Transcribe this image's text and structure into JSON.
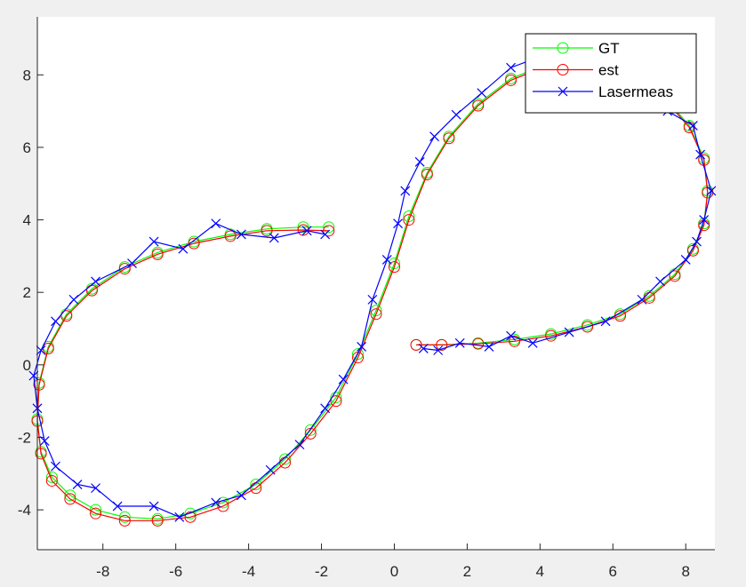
{
  "figure": {
    "background": "#f0f0f0",
    "axes_background": "#ffffff",
    "axis_color": "#262626"
  },
  "chart_data": {
    "type": "line",
    "title": "",
    "xlabel": "",
    "ylabel": "",
    "xlim": [
      -9.8,
      8.8
    ],
    "ylim": [
      -5.1,
      9.6
    ],
    "xticks": [
      -8,
      -6,
      -4,
      -2,
      0,
      2,
      4,
      6,
      8
    ],
    "yticks": [
      -4,
      -2,
      0,
      2,
      4,
      6,
      8
    ],
    "grid": false,
    "legend_position": "top-right",
    "series": [
      {
        "name": "GT",
        "color": "#00ff00",
        "marker": "circle",
        "x": [
          -1.8,
          -2.5,
          -3.5,
          -4.5,
          -5.5,
          -6.5,
          -7.4,
          -8.3,
          -9.0,
          -9.5,
          -9.75,
          -9.8,
          -9.7,
          -9.4,
          -8.9,
          -8.2,
          -7.4,
          -6.5,
          -5.6,
          -4.7,
          -3.8,
          -3.0,
          -2.3,
          -1.6,
          -1.0,
          -0.5,
          0.0,
          0.4,
          0.9,
          1.5,
          2.3,
          3.2,
          4.2,
          5.3,
          6.4,
          7.4,
          8.1,
          8.5,
          8.6,
          8.5,
          8.2,
          7.7,
          7.0,
          6.2,
          5.3,
          4.3,
          3.3,
          2.3,
          1.3,
          0.6
        ],
        "y": [
          3.8,
          3.8,
          3.75,
          3.6,
          3.4,
          3.1,
          2.7,
          2.1,
          1.4,
          0.5,
          -0.5,
          -1.5,
          -2.4,
          -3.1,
          -3.6,
          -4.0,
          -4.2,
          -4.25,
          -4.1,
          -3.8,
          -3.3,
          -2.6,
          -1.8,
          -0.9,
          0.3,
          1.5,
          2.8,
          4.1,
          5.3,
          6.3,
          7.2,
          7.9,
          8.3,
          8.3,
          8.0,
          7.4,
          6.6,
          5.7,
          4.8,
          3.9,
          3.2,
          2.5,
          1.9,
          1.4,
          1.1,
          0.85,
          0.7,
          0.6,
          0.55,
          0.55
        ]
      },
      {
        "name": "est",
        "color": "#ff0000",
        "marker": "circle",
        "x": [
          -1.8,
          -2.5,
          -3.5,
          -4.5,
          -5.5,
          -6.5,
          -7.4,
          -8.3,
          -9.0,
          -9.5,
          -9.75,
          -9.8,
          -9.7,
          -9.4,
          -8.9,
          -8.2,
          -7.4,
          -6.5,
          -5.6,
          -4.7,
          -3.8,
          -3.0,
          -2.3,
          -1.6,
          -1.0,
          -0.5,
          0.0,
          0.4,
          0.9,
          1.5,
          2.3,
          3.2,
          4.2,
          5.3,
          6.4,
          7.4,
          8.1,
          8.5,
          8.6,
          8.5,
          8.2,
          7.7,
          7.0,
          6.2,
          5.3,
          4.3,
          3.3,
          2.3,
          1.3,
          0.6
        ],
        "y": [
          3.7,
          3.72,
          3.7,
          3.55,
          3.35,
          3.05,
          2.65,
          2.05,
          1.35,
          0.45,
          -0.55,
          -1.55,
          -2.45,
          -3.2,
          -3.7,
          -4.1,
          -4.3,
          -4.3,
          -4.2,
          -3.9,
          -3.4,
          -2.7,
          -1.9,
          -1.0,
          0.2,
          1.4,
          2.7,
          4.0,
          5.25,
          6.25,
          7.15,
          7.85,
          8.25,
          8.25,
          7.95,
          7.35,
          6.55,
          5.65,
          4.75,
          3.85,
          3.15,
          2.45,
          1.85,
          1.35,
          1.05,
          0.8,
          0.65,
          0.58,
          0.55,
          0.55
        ]
      },
      {
        "name": "Lasermeas",
        "color": "#0000ff",
        "marker": "x",
        "x": [
          -1.9,
          -2.4,
          -3.3,
          -4.2,
          -4.9,
          -5.8,
          -6.6,
          -7.2,
          -8.2,
          -8.8,
          -9.3,
          -9.7,
          -9.9,
          -9.8,
          -9.6,
          -9.3,
          -8.7,
          -8.2,
          -7.6,
          -6.6,
          -5.9,
          -4.9,
          -4.2,
          -3.4,
          -2.6,
          -1.9,
          -1.4,
          -0.9,
          -0.6,
          -0.2,
          0.1,
          0.3,
          0.7,
          1.1,
          1.7,
          2.4,
          3.2,
          4.0,
          4.8,
          5.7,
          6.6,
          7.5,
          8.2,
          8.4,
          8.7,
          8.5,
          8.3,
          8.0,
          7.3,
          6.8,
          5.8,
          4.8,
          3.8,
          3.2,
          2.6,
          1.8,
          1.2,
          0.8
        ],
        "y": [
          3.6,
          3.7,
          3.5,
          3.6,
          3.9,
          3.2,
          3.4,
          2.8,
          2.3,
          1.8,
          1.2,
          0.4,
          -0.3,
          -1.2,
          -2.1,
          -2.8,
          -3.3,
          -3.4,
          -3.9,
          -3.9,
          -4.2,
          -3.8,
          -3.6,
          -2.9,
          -2.2,
          -1.2,
          -0.4,
          0.5,
          1.8,
          2.9,
          3.9,
          4.8,
          5.6,
          6.3,
          6.9,
          7.5,
          8.2,
          8.5,
          8.1,
          7.8,
          7.4,
          7.0,
          6.6,
          5.8,
          4.8,
          4.0,
          3.4,
          2.9,
          2.3,
          1.8,
          1.2,
          0.9,
          0.6,
          0.8,
          0.5,
          0.6,
          0.4,
          0.45
        ]
      }
    ]
  }
}
